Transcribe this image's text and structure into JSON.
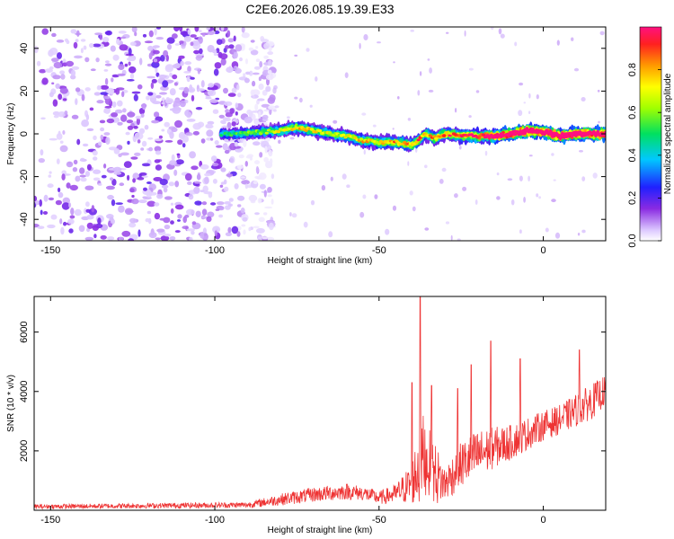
{
  "title": "C2E6.2026.085.19.39.E33",
  "chart_data": [
    {
      "type": "heatmap",
      "xlabel": "Height of straight line (km)",
      "ylabel": "Frequency (Hz)",
      "xlim": [
        -155,
        19
      ],
      "ylim": [
        -50,
        50
      ],
      "xticks": [
        -150,
        -100,
        -50,
        0
      ],
      "xtick_labels": [
        "-150",
        "-100",
        "-50",
        "0"
      ],
      "yticks": [
        -40,
        -20,
        0,
        20,
        40
      ],
      "ytick_labels": [
        "-40",
        "-20",
        "0",
        "20",
        "40"
      ],
      "noise_region_x": [
        -155,
        -82
      ],
      "signal_track": {
        "x": [
          -98,
          -92,
          -85,
          -80,
          -75,
          -70,
          -65,
          -60,
          -55,
          -50,
          -45,
          -40,
          -38,
          -36,
          -33,
          -30,
          -25,
          -20,
          -15,
          -10,
          -5,
          0,
          5,
          10,
          15,
          19
        ],
        "freq": [
          0,
          0,
          1,
          1.5,
          3,
          1.5,
          0,
          -1,
          -3,
          -4,
          -4,
          -5,
          -3,
          0,
          -2,
          0,
          -1,
          -1,
          -1,
          0,
          1.5,
          1,
          -1,
          0,
          0,
          0
        ],
        "amp": [
          0.3,
          0.35,
          0.4,
          0.45,
          0.5,
          0.5,
          0.45,
          0.45,
          0.5,
          0.5,
          0.55,
          0.55,
          0.6,
          0.5,
          0.55,
          0.6,
          0.6,
          0.65,
          0.75,
          0.9,
          0.95,
          0.9,
          0.95,
          0.95,
          0.9,
          0.85
        ]
      },
      "colorbar": {
        "label": "Normalized spectral amplitude",
        "range": [
          0,
          1
        ],
        "ticks": [
          0.0,
          0.2,
          0.4,
          0.6,
          0.8
        ],
        "tick_labels": [
          "0.0",
          "0.2",
          "0.4",
          "0.6",
          "0.8"
        ]
      }
    },
    {
      "type": "line",
      "xlabel": "Height of straight line (km)",
      "ylabel": "SNR (10 * v/v)",
      "xlim": [
        -155,
        19
      ],
      "ylim": [
        0,
        7200
      ],
      "xticks": [
        -150,
        -100,
        -50,
        0
      ],
      "xtick_labels": [
        "-150",
        "-100",
        "-50",
        "0"
      ],
      "yticks": [
        2000,
        4000,
        6000
      ],
      "ytick_labels": [
        "2000",
        "4000",
        "6000"
      ],
      "line_color": "#ee3333",
      "envelope": {
        "x": [
          -155,
          -90,
          -80,
          -70,
          -60,
          -55,
          -50,
          -45,
          -40,
          -37,
          -36,
          -33,
          -30,
          -25,
          -20,
          -15,
          -10,
          -5,
          0,
          5,
          10,
          15,
          19
        ],
        "base": [
          100,
          150,
          300,
          450,
          550,
          500,
          350,
          450,
          700,
          1200,
          1400,
          900,
          700,
          1300,
          1600,
          1900,
          2100,
          2400,
          2700,
          2900,
          3200,
          3500,
          3900
        ],
        "amp": [
          150,
          200,
          400,
          500,
          550,
          500,
          450,
          650,
          1400,
          3500,
          2500,
          2200,
          1200,
          1600,
          1700,
          1400,
          1200,
          1100,
          1000,
          1000,
          1100,
          1200,
          1000
        ]
      },
      "peaks": [
        {
          "x": -37.5,
          "y": 7200
        },
        {
          "x": -40,
          "y": 4300
        },
        {
          "x": -34,
          "y": 4200
        },
        {
          "x": -22,
          "y": 4900
        },
        {
          "x": -16,
          "y": 5700
        },
        {
          "x": -7,
          "y": 5100
        },
        {
          "x": 11,
          "y": 5400
        },
        {
          "x": -26,
          "y": 4100
        }
      ]
    }
  ]
}
